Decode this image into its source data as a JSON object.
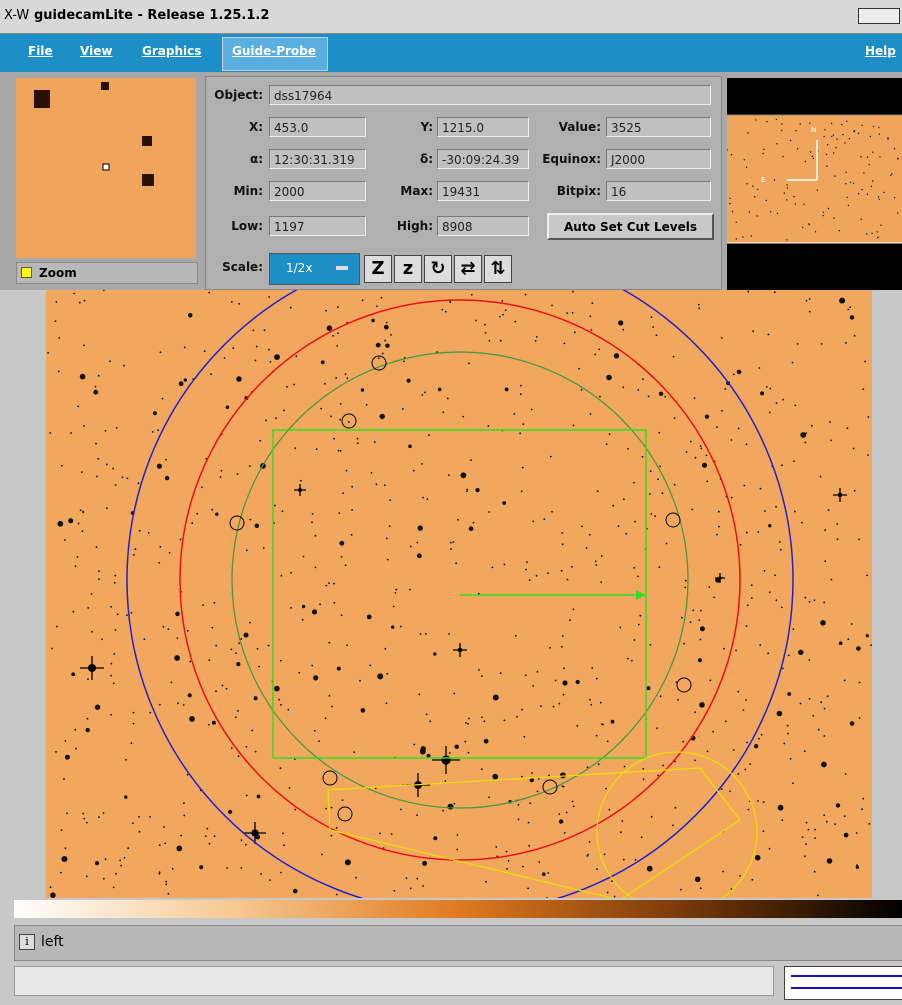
{
  "window": {
    "logo": "X-W",
    "title": "guidecamLite - Release 1.25.1.2"
  },
  "menu": {
    "items": [
      "File",
      "View",
      "Graphics",
      "Guide-Probe"
    ],
    "help": "Help"
  },
  "zoom": {
    "label": "Zoom"
  },
  "info": {
    "fields": [
      {
        "label": "Object:",
        "value": "dss17964"
      },
      {
        "label": "X:",
        "value": "453.0"
      },
      {
        "label": "Y:",
        "value": "1215.0"
      },
      {
        "label": "Value:",
        "value": "3525"
      },
      {
        "label": "α:",
        "value": "12:30:31.319"
      },
      {
        "label": "δ:",
        "value": "-30:09:24.39"
      },
      {
        "label": "Equinox:",
        "value": "J2000"
      },
      {
        "label": "Min:",
        "value": "2000"
      },
      {
        "label": "Max:",
        "value": "19431"
      },
      {
        "label": "Bitpix:",
        "value": "16"
      },
      {
        "label": "Low:",
        "value": "1197"
      },
      {
        "label": "High:",
        "value": "8908"
      }
    ],
    "button": "Auto Set Cut Levels",
    "scale_label": "Scale:",
    "scale_value": "1/2x"
  },
  "compass": {
    "north": "N",
    "east": "E"
  },
  "status": {
    "icon": "i",
    "text": "left"
  }
}
